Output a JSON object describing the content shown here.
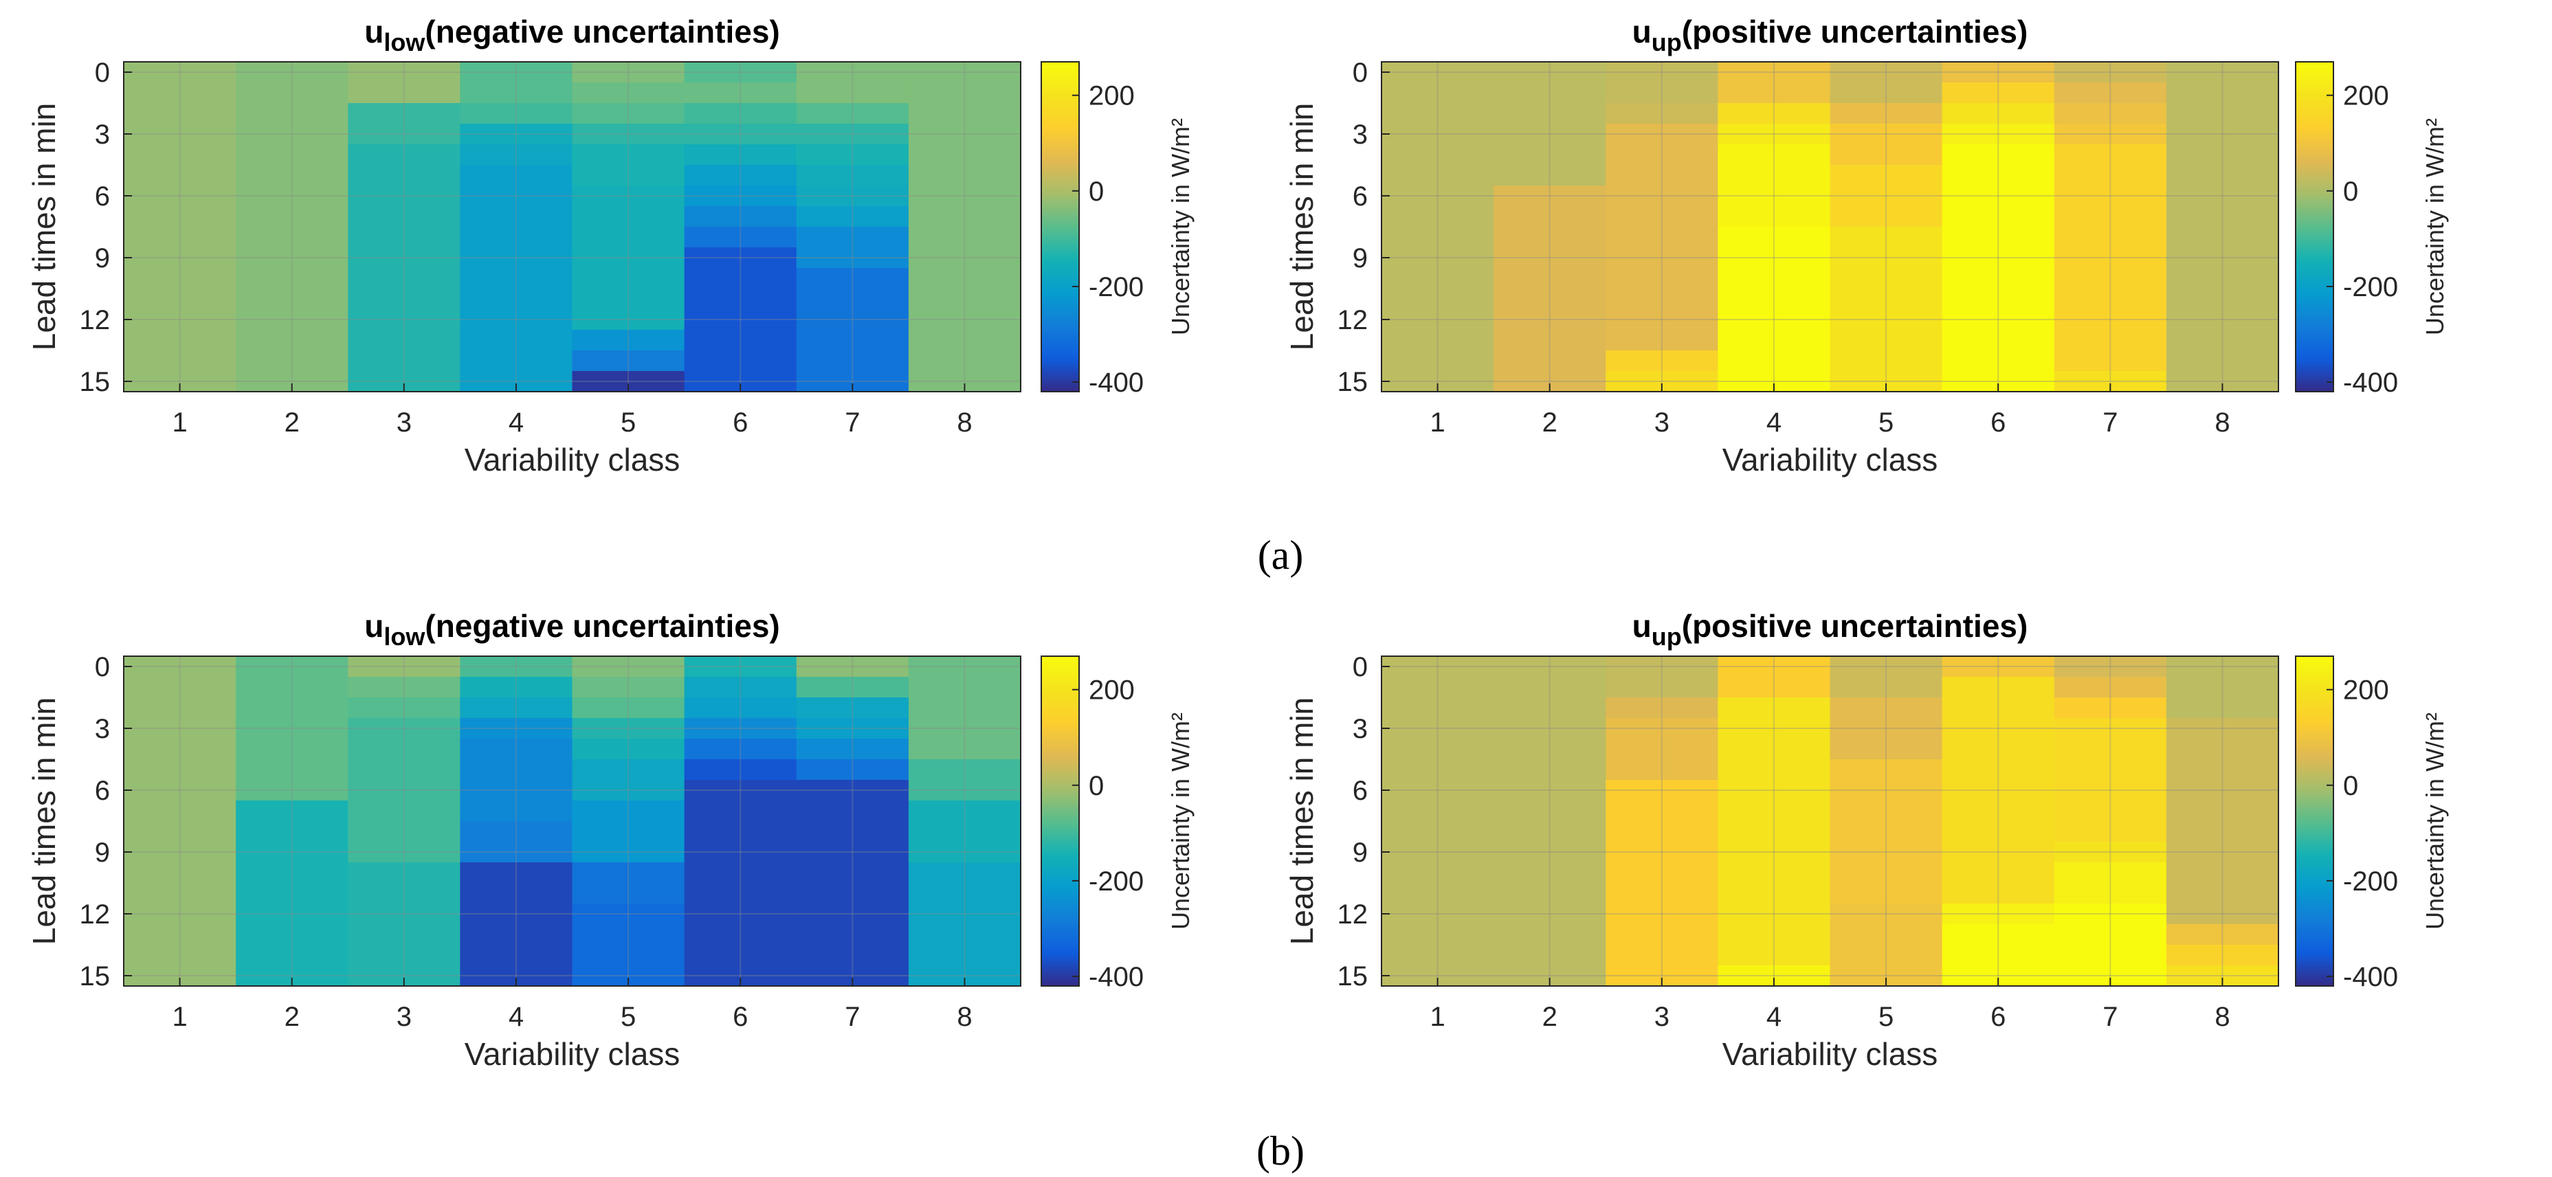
{
  "panel_labels": [
    "(a)",
    "(b)"
  ],
  "colorbar": {
    "label": "Uncertainty in W/m²",
    "range": [
      -420,
      270
    ],
    "ticks": [
      -400,
      -200,
      0,
      200
    ],
    "tick_labels": [
      "-400",
      "-200",
      "0",
      "200"
    ]
  },
  "chart_data": [
    {
      "type": "heatmap",
      "panel": "a",
      "title_main": "u",
      "title_sub": "low",
      "title_rest": "(negative uncertainties)",
      "xlabel": "Variability class",
      "ylabel": "Lead times in min",
      "x": [
        1,
        2,
        3,
        4,
        5,
        6,
        7,
        8
      ],
      "y": [
        0,
        1,
        2,
        3,
        4,
        5,
        6,
        7,
        8,
        9,
        10,
        11,
        12,
        13,
        14,
        15
      ],
      "xticks": [
        "1",
        "2",
        "3",
        "4",
        "5",
        "6",
        "7",
        "8"
      ],
      "yticks": [
        0,
        3,
        6,
        9,
        12,
        15
      ],
      "ytick_labels": [
        "0",
        "3",
        "6",
        "9",
        "12",
        "15"
      ],
      "values": [
        [
          -20,
          -35,
          -20,
          -80,
          -40,
          -80,
          -40,
          -40
        ],
        [
          -20,
          -35,
          -20,
          -80,
          -60,
          -60,
          -40,
          -40
        ],
        [
          -20,
          -35,
          -110,
          -100,
          -80,
          -100,
          -80,
          -40
        ],
        [
          -20,
          -35,
          -110,
          -160,
          -120,
          -120,
          -120,
          -40
        ],
        [
          -20,
          -35,
          -130,
          -180,
          -140,
          -160,
          -140,
          -40
        ],
        [
          -20,
          -35,
          -130,
          -200,
          -140,
          -200,
          -160,
          -40
        ],
        [
          -20,
          -35,
          -130,
          -200,
          -150,
          -220,
          -170,
          -40
        ],
        [
          -20,
          -35,
          -130,
          -200,
          -150,
          -260,
          -200,
          -40
        ],
        [
          -20,
          -35,
          -130,
          -200,
          -150,
          -300,
          -250,
          -40
        ],
        [
          -20,
          -35,
          -130,
          -200,
          -150,
          -360,
          -250,
          -40
        ],
        [
          -20,
          -35,
          -130,
          -200,
          -150,
          -360,
          -300,
          -40
        ],
        [
          -20,
          -35,
          -130,
          -200,
          -150,
          -360,
          -300,
          -40
        ],
        [
          -20,
          -35,
          -130,
          -200,
          -150,
          -360,
          -300,
          -40
        ],
        [
          -20,
          -35,
          -130,
          -200,
          -230,
          -360,
          -300,
          -40
        ],
        [
          -20,
          -35,
          -130,
          -200,
          -280,
          -360,
          -300,
          -40
        ],
        [
          -20,
          -35,
          -130,
          -200,
          -400,
          -360,
          -300,
          -40
        ]
      ]
    },
    {
      "type": "heatmap",
      "panel": "a",
      "title_main": "u",
      "title_sub": "up",
      "title_rest": "(positive uncertainties)",
      "xlabel": "Variability class",
      "ylabel": "Lead times in min",
      "x": [
        1,
        2,
        3,
        4,
        5,
        6,
        7,
        8
      ],
      "y": [
        0,
        1,
        2,
        3,
        4,
        5,
        6,
        7,
        8,
        9,
        10,
        11,
        12,
        13,
        14,
        15
      ],
      "xticks": [
        "1",
        "2",
        "3",
        "4",
        "5",
        "6",
        "7",
        "8"
      ],
      "yticks": [
        0,
        3,
        6,
        9,
        12,
        15
      ],
      "ytick_labels": [
        "0",
        "3",
        "6",
        "9",
        "12",
        "15"
      ],
      "values": [
        [
          20,
          20,
          30,
          100,
          40,
          90,
          40,
          20
        ],
        [
          20,
          20,
          30,
          100,
          40,
          150,
          70,
          20
        ],
        [
          20,
          20,
          40,
          180,
          80,
          200,
          90,
          20
        ],
        [
          20,
          20,
          70,
          220,
          120,
          240,
          110,
          20
        ],
        [
          20,
          20,
          70,
          250,
          120,
          270,
          150,
          20
        ],
        [
          20,
          20,
          70,
          250,
          160,
          270,
          150,
          20
        ],
        [
          20,
          60,
          70,
          250,
          160,
          270,
          150,
          20
        ],
        [
          20,
          60,
          70,
          250,
          160,
          270,
          150,
          20
        ],
        [
          20,
          60,
          70,
          270,
          200,
          270,
          150,
          20
        ],
        [
          20,
          60,
          70,
          270,
          200,
          270,
          150,
          20
        ],
        [
          20,
          60,
          70,
          270,
          200,
          270,
          150,
          20
        ],
        [
          20,
          60,
          70,
          270,
          200,
          270,
          150,
          20
        ],
        [
          20,
          60,
          70,
          270,
          200,
          270,
          150,
          20
        ],
        [
          20,
          60,
          70,
          270,
          200,
          270,
          150,
          20
        ],
        [
          20,
          60,
          150,
          270,
          200,
          270,
          150,
          20
        ],
        [
          20,
          60,
          180,
          270,
          200,
          270,
          190,
          20
        ]
      ]
    },
    {
      "type": "heatmap",
      "panel": "b",
      "title_main": "u",
      "title_sub": "low",
      "title_rest": "(negative uncertainties)",
      "xlabel": "Variability class",
      "ylabel": "Lead times in min",
      "x": [
        1,
        2,
        3,
        4,
        5,
        6,
        7,
        8
      ],
      "y": [
        0,
        1,
        2,
        3,
        4,
        5,
        6,
        7,
        8,
        9,
        10,
        11,
        12,
        13,
        14,
        15
      ],
      "xticks": [
        "1",
        "2",
        "3",
        "4",
        "5",
        "6",
        "7",
        "8"
      ],
      "yticks": [
        0,
        3,
        6,
        9,
        12,
        15
      ],
      "ytick_labels": [
        "0",
        "3",
        "6",
        "9",
        "12",
        "15"
      ],
      "values": [
        [
          -20,
          -70,
          -20,
          -90,
          -40,
          -140,
          -30,
          -60
        ],
        [
          -20,
          -70,
          -60,
          -150,
          -60,
          -180,
          -90,
          -60
        ],
        [
          -20,
          -70,
          -80,
          -180,
          -80,
          -200,
          -180,
          -60
        ],
        [
          -20,
          -70,
          -100,
          -240,
          -130,
          -250,
          -200,
          -60
        ],
        [
          -20,
          -70,
          -100,
          -260,
          -150,
          -300,
          -250,
          -60
        ],
        [
          -20,
          -70,
          -100,
          -260,
          -180,
          -360,
          -300,
          -100
        ],
        [
          -20,
          -70,
          -100,
          -260,
          -180,
          -380,
          -380,
          -100
        ],
        [
          -20,
          -140,
          -100,
          -260,
          -220,
          -380,
          -380,
          -150
        ],
        [
          -20,
          -140,
          -100,
          -280,
          -220,
          -380,
          -380,
          -150
        ],
        [
          -20,
          -140,
          -100,
          -280,
          -220,
          -380,
          -380,
          -150
        ],
        [
          -20,
          -140,
          -130,
          -380,
          -300,
          -380,
          -380,
          -180
        ],
        [
          -20,
          -140,
          -130,
          -380,
          -300,
          -380,
          -380,
          -180
        ],
        [
          -20,
          -140,
          -130,
          -380,
          -320,
          -380,
          -380,
          -180
        ],
        [
          -20,
          -140,
          -130,
          -380,
          -320,
          -380,
          -380,
          -180
        ],
        [
          -20,
          -140,
          -130,
          -380,
          -320,
          -380,
          -380,
          -180
        ],
        [
          -20,
          -140,
          -130,
          -380,
          -320,
          -380,
          -380,
          -180
        ]
      ]
    },
    {
      "type": "heatmap",
      "panel": "b",
      "title_main": "u",
      "title_sub": "up",
      "title_rest": "(positive uncertainties)",
      "xlabel": "Variability class",
      "ylabel": "Lead times in min",
      "x": [
        1,
        2,
        3,
        4,
        5,
        6,
        7,
        8
      ],
      "y": [
        0,
        1,
        2,
        3,
        4,
        5,
        6,
        7,
        8,
        9,
        10,
        11,
        12,
        13,
        14,
        15
      ],
      "xticks": [
        "1",
        "2",
        "3",
        "4",
        "5",
        "6",
        "7",
        "8"
      ],
      "yticks": [
        0,
        3,
        6,
        9,
        12,
        15
      ],
      "ytick_labels": [
        "0",
        "3",
        "6",
        "9",
        "12",
        "15"
      ],
      "values": [
        [
          20,
          20,
          30,
          130,
          40,
          110,
          50,
          20
        ],
        [
          20,
          20,
          30,
          130,
          40,
          180,
          80,
          20
        ],
        [
          20,
          20,
          60,
          200,
          70,
          180,
          130,
          20
        ],
        [
          20,
          20,
          80,
          200,
          70,
          180,
          170,
          40
        ],
        [
          20,
          20,
          80,
          200,
          70,
          180,
          170,
          40
        ],
        [
          20,
          20,
          80,
          200,
          110,
          180,
          170,
          40
        ],
        [
          20,
          20,
          130,
          200,
          110,
          180,
          170,
          40
        ],
        [
          20,
          20,
          130,
          200,
          110,
          180,
          170,
          40
        ],
        [
          20,
          20,
          130,
          200,
          110,
          180,
          170,
          40
        ],
        [
          20,
          20,
          130,
          200,
          110,
          180,
          200,
          40
        ],
        [
          20,
          20,
          130,
          200,
          110,
          180,
          240,
          40
        ],
        [
          20,
          20,
          130,
          200,
          110,
          180,
          240,
          40
        ],
        [
          20,
          20,
          130,
          200,
          100,
          240,
          270,
          40
        ],
        [
          20,
          20,
          130,
          200,
          100,
          270,
          270,
          100
        ],
        [
          20,
          20,
          130,
          200,
          100,
          270,
          270,
          150
        ],
        [
          20,
          20,
          130,
          250,
          100,
          270,
          270,
          190
        ]
      ]
    }
  ]
}
